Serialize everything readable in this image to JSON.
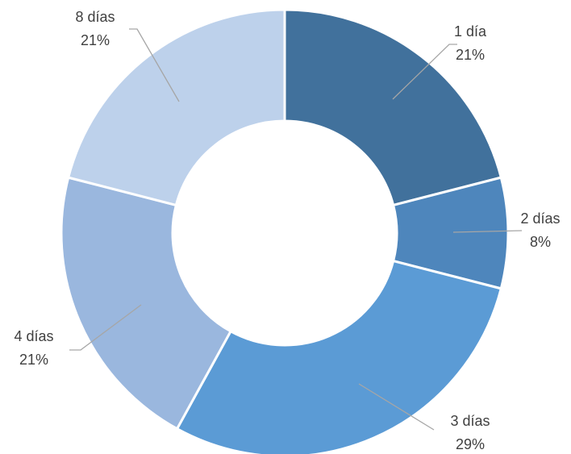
{
  "chart_data": {
    "type": "donut",
    "categories": [
      "1 día",
      "2 días",
      "3 días",
      "4 días",
      "8 días"
    ],
    "values": [
      21,
      8,
      29,
      21,
      21
    ],
    "value_labels": [
      "21%",
      "8%",
      "29%",
      "21%",
      "21%"
    ],
    "colors": [
      "#41719c",
      "#4e86bc",
      "#5b9bd5",
      "#9ab7de",
      "#bdd1eb"
    ]
  }
}
